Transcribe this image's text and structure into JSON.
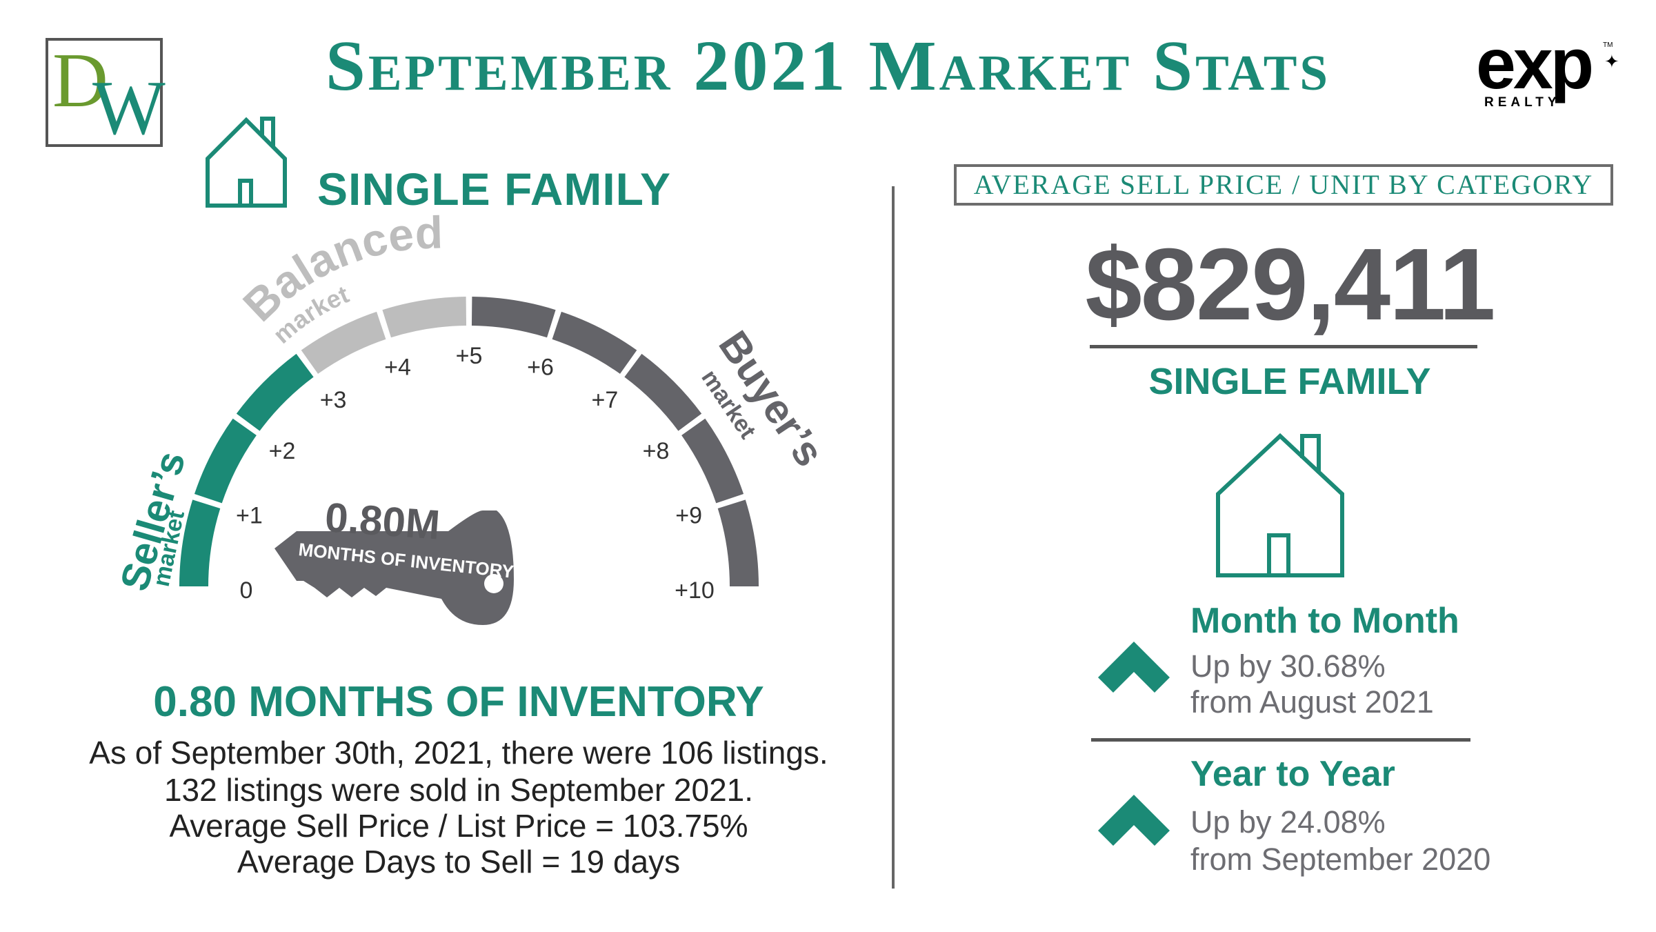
{
  "header": {
    "title": "September 2021 Market Stats",
    "logo_left_d": "D",
    "logo_left_w": "W",
    "logo_right_word": "exp",
    "logo_right_sub": "REALTY",
    "logo_right_tm": "TM"
  },
  "left": {
    "section_title": "SINGLE FAMILY",
    "gauge": {
      "balanced_label": "Balanced",
      "balanced_sub": "market",
      "sellers_label": "Seller’s",
      "sellers_sub": "market",
      "buyers_label": "Buyer’s",
      "buyers_sub": "market",
      "ticks": [
        "0",
        "+1",
        "+2",
        "+3",
        "+4",
        "+5",
        "+6",
        "+7",
        "+8",
        "+9",
        "+10"
      ],
      "key_value": "0.80M",
      "key_label": "MONTHS OF INVENTORY",
      "value": 0.8
    },
    "inventory_heading": "0.80 MONTHS OF INVENTORY",
    "lines": [
      "As of September 30th, 2021, there were 106 listings.",
      "132 listings were sold in September 2021.",
      "Average Sell Price / List Price = 103.75%",
      "Average Days to Sell = 19 days"
    ]
  },
  "right": {
    "category_box": "AVERAGE SELL PRICE / UNIT BY CATEGORY",
    "price": "$829,411",
    "category": "SINGLE FAMILY",
    "month": {
      "title": "Month to Month",
      "line1": "Up by 30.68%",
      "line2": "from August 2021"
    },
    "year": {
      "title": "Year to Year",
      "line1": "Up by 24.08%",
      "line2": "from September 2020"
    }
  },
  "colors": {
    "green": "#1b8a76",
    "dark_gray": "#646469",
    "light_gray": "#bdbdbd",
    "text": "#222222"
  }
}
